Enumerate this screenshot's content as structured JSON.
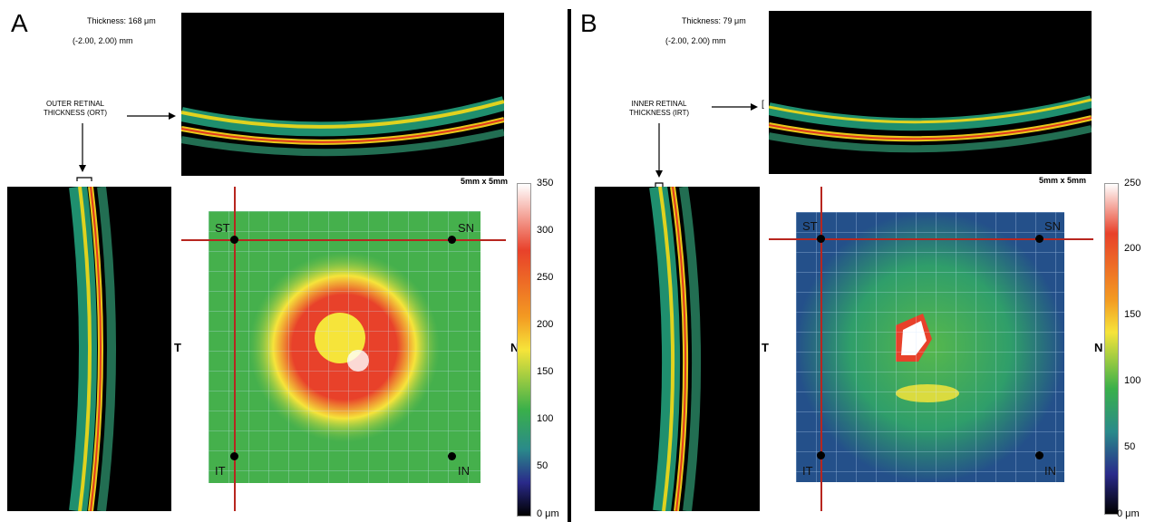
{
  "panels": [
    {
      "letter": "A",
      "thickness": "Thickness: 168 μm",
      "coords": "(-2.00, 2.00) mm",
      "layer_label_line1": "OUTER RETINAL",
      "layer_label_line2": "THICKNESS (ORT)",
      "bracket": "[",
      "scale": "5mm x 5mm",
      "corners": {
        "st": "ST",
        "sn": "SN",
        "it": "IT",
        "in": "IN"
      },
      "side_t": "T",
      "side_n": "N",
      "colorbar": {
        "ticks": [
          "350",
          "300",
          "250",
          "200",
          "150",
          "100",
          "50",
          "0 μm"
        ]
      },
      "hotspot_color": "#e8412a"
    },
    {
      "letter": "B",
      "thickness": "Thickness: 79 μm",
      "coords": "(-2.00, 2.00) mm",
      "layer_label_line1": "INNER RETINAL",
      "layer_label_line2": "THICKNESS (IRT)",
      "bracket": "[",
      "scale": "5mm x 5mm",
      "corners": {
        "st": "ST",
        "sn": "SN",
        "it": "IT",
        "in": "IN"
      },
      "side_t": "T",
      "side_n": "N",
      "colorbar": {
        "ticks": [
          "250",
          "200",
          "150",
          "100",
          "50",
          "0 μm"
        ]
      },
      "hotspot_color": "#ffffff"
    }
  ],
  "colors": {
    "crosshair": "#b8261f",
    "map_base": "#3ab04a",
    "colorbar_top": "#ffffff",
    "colorbar_bottom": "#000000"
  }
}
